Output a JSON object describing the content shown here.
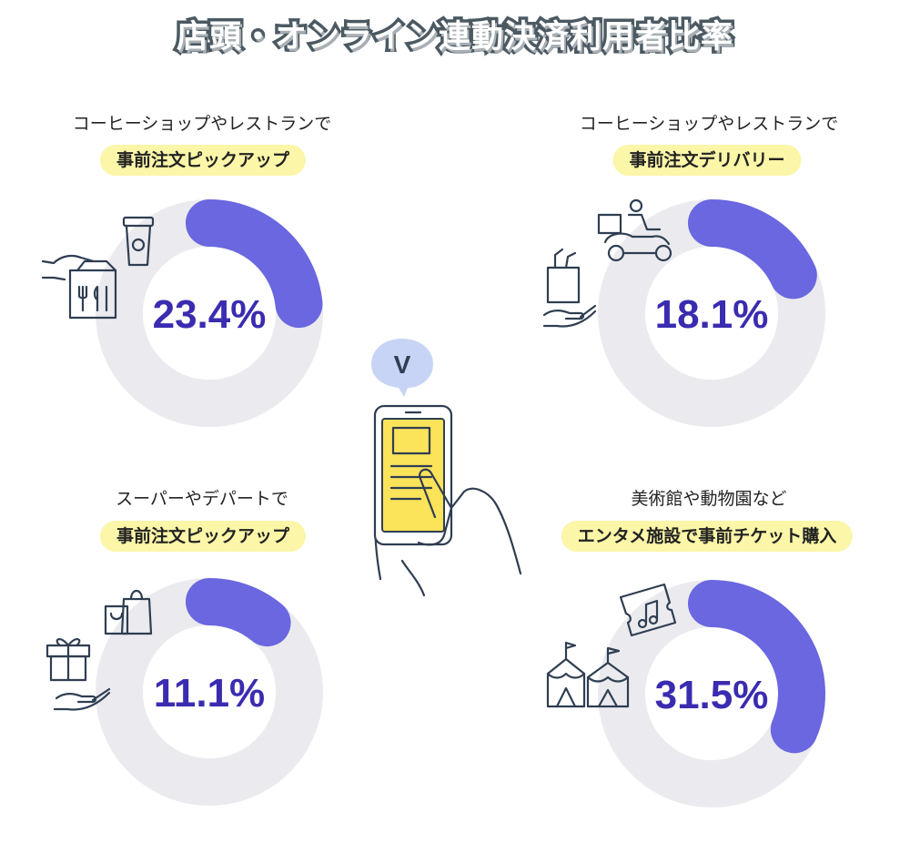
{
  "title": "店頭・オンライン連動決済利用者比率",
  "colors": {
    "track": "#ebebef",
    "arc": "#6a67e0",
    "center": "#ffffff",
    "percent": "#3a2cb0",
    "pill": "#fbf6a8"
  },
  "chart_data": [
    {
      "type": "pie",
      "caption": "コーヒーショップやレストランで",
      "label": "事前注文ピックアップ",
      "value": 23.4,
      "value_label": "23.4%",
      "ylim": [
        0,
        100
      ]
    },
    {
      "type": "pie",
      "caption": "コーヒーショップやレストランで",
      "label": "事前注文デリバリー",
      "value": 18.1,
      "value_label": "18.1%",
      "ylim": [
        0,
        100
      ]
    },
    {
      "type": "pie",
      "caption": "スーパーやデパートで",
      "label": "事前注文ピックアップ",
      "value": 11.1,
      "value_label": "11.1%",
      "ylim": [
        0,
        100
      ]
    },
    {
      "type": "pie",
      "caption": "美術館や動物園など",
      "label": "エンタメ施設で事前チケット購入",
      "value": 31.5,
      "value_label": "31.5%",
      "ylim": [
        0,
        100
      ]
    }
  ],
  "icons": {
    "d0": [
      "coffee-cup-icon",
      "hand-bag-icon"
    ],
    "d1": [
      "scooter-delivery-icon",
      "grocery-hand-icon"
    ],
    "d2": [
      "shopping-bag-icon",
      "gift-hand-icon"
    ],
    "d3": [
      "ticket-music-icon",
      "circus-tent-icon"
    ],
    "center": [
      "check-bubble-icon",
      "smartphone-hand-icon"
    ]
  },
  "bubble_mark": "V"
}
